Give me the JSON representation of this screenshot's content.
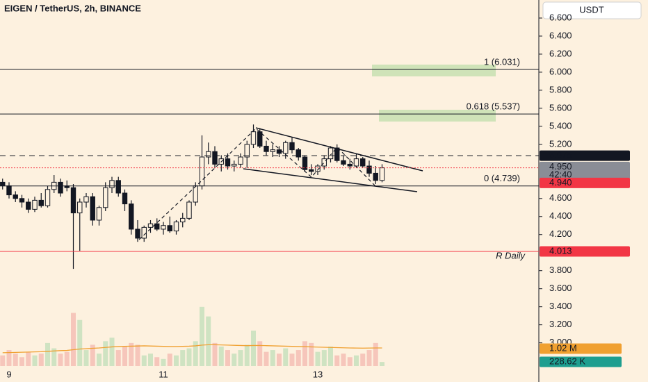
{
  "chart_data": {
    "type": "candlestick",
    "title": "EIGEN / TetherUS, 2h, BINANCE",
    "currency": "USDT",
    "up_color": "#fdf1df",
    "down_color": "#131722",
    "volume_up_color": "#cfe3c2",
    "volume_down_color": "#f6c6bb",
    "volume_ma_color": "#f0a030",
    "categories": [
      null,
      "9",
      null,
      null,
      null,
      null,
      null,
      null,
      null,
      null,
      null,
      null,
      null,
      null,
      null,
      null,
      null,
      null,
      null,
      null,
      null,
      null,
      null,
      null,
      null,
      "11",
      null,
      null,
      null,
      null,
      null,
      null,
      null,
      null,
      null,
      null,
      null,
      null,
      null,
      null,
      null,
      null,
      null,
      null,
      null,
      null,
      null,
      null,
      null,
      "13",
      null,
      null,
      null,
      null,
      null,
      null,
      null,
      null,
      null,
      null
    ],
    "ohlc": [
      [
        4.78,
        4.82,
        4.7,
        4.74
      ],
      [
        4.74,
        4.78,
        4.6,
        4.64
      ],
      [
        4.64,
        4.68,
        4.56,
        4.6
      ],
      [
        4.6,
        4.64,
        4.5,
        4.56
      ],
      [
        4.56,
        4.6,
        4.44,
        4.48
      ],
      [
        4.48,
        4.62,
        4.45,
        4.58
      ],
      [
        4.58,
        4.66,
        4.5,
        4.52
      ],
      [
        4.52,
        4.74,
        4.5,
        4.7
      ],
      [
        4.7,
        4.86,
        4.66,
        4.78
      ],
      [
        4.78,
        4.82,
        4.62,
        4.66
      ],
      [
        4.74,
        4.8,
        4.68,
        4.72
      ],
      [
        4.72,
        4.76,
        3.82,
        4.44
      ],
      [
        4.44,
        4.6,
        4.02,
        4.56
      ],
      [
        4.56,
        4.66,
        4.5,
        4.62
      ],
      [
        4.62,
        4.66,
        4.3,
        4.36
      ],
      [
        4.36,
        4.52,
        4.3,
        4.5
      ],
      [
        4.5,
        4.78,
        4.46,
        4.72
      ],
      [
        4.72,
        4.84,
        4.66,
        4.8
      ],
      [
        4.8,
        4.84,
        4.62,
        4.66
      ],
      [
        4.66,
        4.7,
        4.46,
        4.54
      ],
      [
        4.54,
        4.58,
        4.2,
        4.26
      ],
      [
        4.26,
        4.36,
        4.12,
        4.16
      ],
      [
        4.16,
        4.3,
        4.12,
        4.28
      ],
      [
        4.28,
        4.36,
        4.22,
        4.32
      ],
      [
        4.32,
        4.38,
        4.24,
        4.26
      ],
      [
        4.26,
        4.34,
        4.2,
        4.3
      ],
      [
        4.3,
        4.4,
        4.22,
        4.24
      ],
      [
        4.24,
        4.36,
        4.2,
        4.34
      ],
      [
        4.34,
        4.44,
        4.28,
        4.38
      ],
      [
        4.38,
        4.58,
        4.36,
        4.56
      ],
      [
        4.56,
        4.78,
        4.52,
        4.74
      ],
      [
        4.74,
        5.3,
        4.7,
        5.06
      ],
      [
        5.06,
        5.22,
        4.98,
        5.12
      ],
      [
        5.12,
        5.18,
        4.94,
        4.98
      ],
      [
        4.98,
        5.08,
        4.9,
        5.04
      ],
      [
        5.04,
        5.1,
        4.92,
        4.96
      ],
      [
        4.96,
        5.02,
        4.9,
        4.98
      ],
      [
        4.98,
        5.1,
        4.94,
        5.06
      ],
      [
        5.06,
        5.24,
        4.94,
        5.2
      ],
      [
        5.2,
        5.42,
        5.16,
        5.34
      ],
      [
        5.34,
        5.38,
        5.16,
        5.18
      ],
      [
        5.18,
        5.24,
        5.08,
        5.12
      ],
      [
        5.12,
        5.2,
        5.06,
        5.14
      ],
      [
        5.14,
        5.18,
        5.06,
        5.1
      ],
      [
        5.1,
        5.24,
        5.04,
        5.22
      ],
      [
        5.22,
        5.28,
        5.1,
        5.14
      ],
      [
        5.14,
        5.16,
        5.02,
        5.06
      ],
      [
        5.06,
        5.08,
        4.9,
        4.92
      ],
      [
        4.92,
        4.98,
        4.86,
        4.9
      ],
      [
        4.9,
        4.98,
        4.86,
        4.96
      ],
      [
        4.96,
        5.08,
        4.92,
        5.04
      ],
      [
        5.04,
        5.18,
        5.0,
        5.16
      ],
      [
        5.16,
        5.2,
        5.0,
        5.02
      ],
      [
        5.02,
        5.08,
        4.96,
        4.98
      ],
      [
        4.98,
        5.04,
        4.92,
        4.96
      ],
      [
        4.96,
        5.1,
        4.94,
        5.04
      ],
      [
        5.04,
        5.06,
        4.94,
        4.96
      ],
      [
        4.96,
        5.02,
        4.84,
        4.88
      ],
      [
        4.88,
        4.96,
        4.76,
        4.8
      ],
      [
        4.8,
        4.98,
        4.78,
        4.94
      ]
    ],
    "volume": [
      600,
      900,
      700,
      500,
      800,
      600,
      700,
      1300,
      1000,
      700,
      800,
      3000,
      2600,
      900,
      1200,
      700,
      1400,
      1600,
      900,
      1100,
      1300,
      1200,
      600,
      700,
      500,
      400,
      700,
      600,
      900,
      1000,
      1400,
      3340,
      2800,
      1300,
      1100,
      900,
      700,
      900,
      1200,
      2000,
      1400,
      800,
      900,
      700,
      1000,
      700,
      900,
      1400,
      1300,
      800,
      900,
      1100,
      600,
      700,
      500,
      600,
      700,
      900,
      1300,
      228.62
    ],
    "volume_ma": [
      750,
      760,
      770,
      780,
      790,
      800,
      810,
      830,
      850,
      870,
      880,
      920,
      960,
      980,
      1000,
      1020,
      1050,
      1080,
      1100,
      1110,
      1120,
      1130,
      1140,
      1130,
      1120,
      1110,
      1100,
      1100,
      1110,
      1120,
      1140,
      1180,
      1200,
      1200,
      1190,
      1180,
      1170,
      1160,
      1150,
      1160,
      1160,
      1150,
      1140,
      1130,
      1120,
      1110,
      1100,
      1090,
      1080,
      1070,
      1060,
      1050,
      1040,
      1030,
      1020,
      1015,
      1010,
      1015,
      1020,
      1020
    ],
    "volume_label": {
      "value": 228.62,
      "label": "228.62 K"
    },
    "volume_ma_label": {
      "value": 1020,
      "label": "1.02 M"
    },
    "ylim": [
      2.72,
      6.8
    ],
    "yticks": [
      {
        "value": 6.6,
        "label": "6.600"
      },
      {
        "value": 6.4,
        "label": "6.400"
      },
      {
        "value": 6.2,
        "label": "6.200"
      },
      {
        "value": 6.0,
        "label": "6.000"
      },
      {
        "value": 5.8,
        "label": "5.800"
      },
      {
        "value": 5.6,
        "label": "5.600"
      },
      {
        "value": 5.4,
        "label": "5.400"
      },
      {
        "value": 5.2,
        "label": "5.200"
      },
      {
        "value": 4.6,
        "label": "4.600"
      },
      {
        "value": 4.4,
        "label": "4.400"
      },
      {
        "value": 4.2,
        "label": "4.200"
      },
      {
        "value": 3.8,
        "label": "3.800"
      },
      {
        "value": 3.6,
        "label": "3.600"
      },
      {
        "value": 3.4,
        "label": "3.400"
      },
      {
        "value": 3.2,
        "label": "3.200"
      },
      {
        "value": 3.0,
        "label": "3.000"
      }
    ],
    "levels": [
      {
        "value": 6.031,
        "label": "1 (6.031)"
      },
      {
        "value": 5.537,
        "label": "0.618 (5.537)"
      },
      {
        "value": 4.739,
        "label": "0 (4.739)"
      }
    ],
    "price_labels": [
      {
        "value": 5.075,
        "label": "5.075",
        "color": "#131722",
        "line": "dashed"
      },
      {
        "value": 4.95,
        "label": "4.950",
        "color": "#8a8d96",
        "countdown": "42:40"
      },
      {
        "value": 4.94,
        "label": "4.940",
        "color": "#f23645",
        "line": "dotted"
      },
      {
        "value": 4.013,
        "label": "4.013",
        "color": "#f23645",
        "line": "solid",
        "note": "R Daily"
      }
    ]
  }
}
